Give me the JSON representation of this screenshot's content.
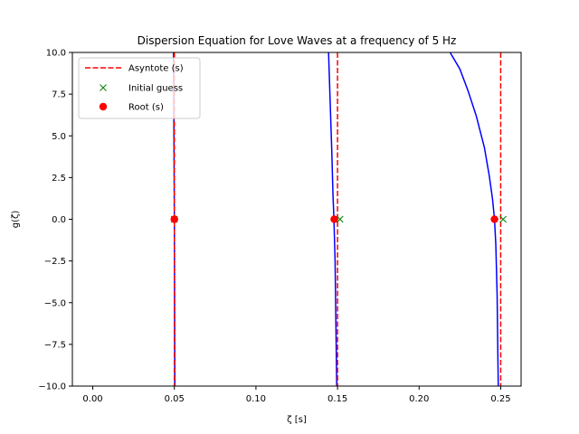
{
  "chart_data": {
    "type": "line",
    "title": "Dispersion Equation for Love Waves at a frequency of 5 Hz",
    "xlabel": "ζ [s]",
    "ylabel": "g(ζ)",
    "xlim": [
      -0.0125,
      0.2625
    ],
    "ylim": [
      -10,
      10
    ],
    "xticks": [
      0.0,
      0.05,
      0.1,
      0.15,
      0.2,
      0.25
    ],
    "xtick_labels": [
      "0.00",
      "0.05",
      "0.10",
      "0.15",
      "0.20",
      "0.25"
    ],
    "yticks": [
      -10.0,
      -7.5,
      -5.0,
      -2.5,
      0.0,
      2.5,
      5.0,
      7.5,
      10.0
    ],
    "ytick_labels": [
      "−10.0",
      "−7.5",
      "−5.0",
      "−2.5",
      "0.0",
      "2.5",
      "5.0",
      "7.5",
      "10.0"
    ],
    "grid": false,
    "legend_position": "top-left",
    "series": [
      {
        "name": "",
        "kind": "curve",
        "color": "#0000ff",
        "segments": [
          {
            "x": [
              0.0495,
              0.0497,
              0.0499,
              0.05,
              0.0501,
              0.0503
            ],
            "y": [
              10,
              6,
              2,
              0,
              -3,
              -10
            ]
          },
          {
            "x": [
              0.1445,
              0.1455,
              0.1465,
              0.1472,
              0.1478,
              0.1485,
              0.1495
            ],
            "y": [
              10,
              7,
              4,
              1.5,
              0,
              -2.5,
              -10
            ]
          },
          {
            "x": [
              0.219,
              0.225,
              0.23,
              0.235,
              0.24,
              0.243,
              0.245,
              0.2462,
              0.247,
              0.2478,
              0.2485
            ],
            "y": [
              10,
              9.0,
              7.7,
              6.2,
              4.3,
              2.6,
              1.2,
              0,
              -1.5,
              -4.5,
              -10
            ]
          }
        ]
      },
      {
        "name": "Asyntote (s)",
        "kind": "vline",
        "color": "#ff0000",
        "x": [
          0.05,
          0.15,
          0.25
        ]
      },
      {
        "name": "Initial guess",
        "kind": "marker-x",
        "color": "#008000",
        "x": [
          0.05,
          0.1515,
          0.2515
        ],
        "y": [
          0,
          0,
          0
        ]
      },
      {
        "name": "Root (s)",
        "kind": "marker-dot",
        "color": "#ff0000",
        "x": [
          0.05,
          0.148,
          0.2462
        ],
        "y": [
          0,
          0,
          0
        ]
      }
    ]
  }
}
